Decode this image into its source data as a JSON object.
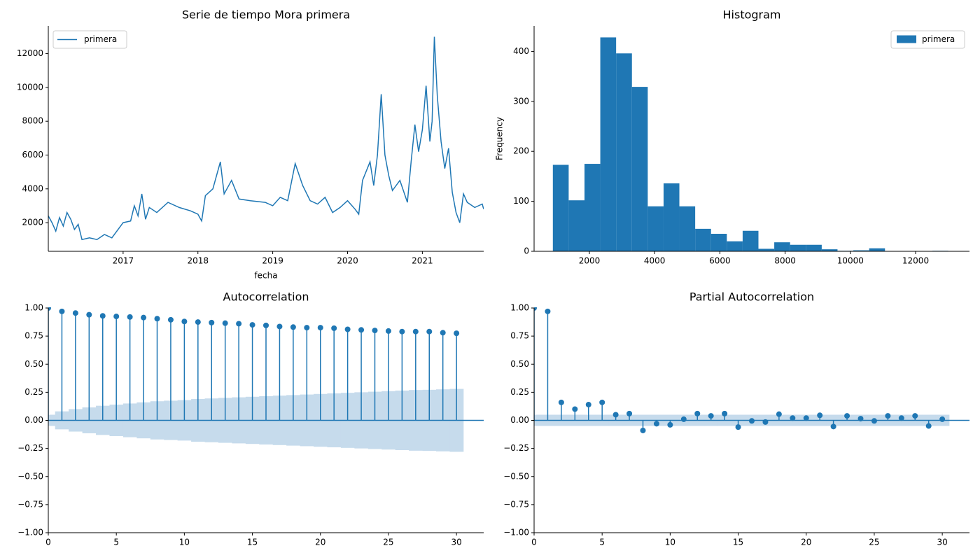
{
  "chart_data": [
    {
      "type": "line",
      "title": "Serie de tiempo Mora primera",
      "xlabel": "fecha",
      "legend": "upper left",
      "x": [
        2016.0,
        2016.05,
        2016.1,
        2016.15,
        2016.2,
        2016.25,
        2016.3,
        2016.35,
        2016.4,
        2016.45,
        2016.55,
        2016.65,
        2016.75,
        2016.85,
        2016.95,
        2017.0,
        2017.1,
        2017.15,
        2017.2,
        2017.25,
        2017.3,
        2017.35,
        2017.45,
        2017.6,
        2017.75,
        2017.9,
        2018.0,
        2018.05,
        2018.1,
        2018.2,
        2018.3,
        2018.35,
        2018.45,
        2018.55,
        2018.7,
        2018.9,
        2019.0,
        2019.1,
        2019.2,
        2019.3,
        2019.4,
        2019.5,
        2019.6,
        2019.7,
        2019.8,
        2019.9,
        2020.0,
        2020.1,
        2020.15,
        2020.2,
        2020.3,
        2020.35,
        2020.4,
        2020.45,
        2020.5,
        2020.55,
        2020.6,
        2020.7,
        2020.8,
        2020.85,
        2020.9,
        2020.95,
        2021.0,
        2021.05,
        2021.1,
        2021.13,
        2021.16,
        2021.2,
        2021.25,
        2021.3,
        2021.35,
        2021.4,
        2021.45,
        2021.5,
        2021.55,
        2021.6,
        2021.7,
        2021.8,
        2021.82
      ],
      "series": [
        {
          "name": "primera",
          "color": "#1f77b4",
          "values": [
            2400,
            2000,
            1500,
            2300,
            1800,
            2600,
            2200,
            1600,
            1900,
            1000,
            1100,
            1000,
            1300,
            1100,
            1700,
            2000,
            2100,
            3000,
            2400,
            3700,
            2200,
            2900,
            2600,
            3200,
            2900,
            2700,
            2500,
            2100,
            3600,
            4000,
            5600,
            3700,
            4500,
            3400,
            3300,
            3200,
            3000,
            3500,
            3300,
            5500,
            4200,
            3300,
            3100,
            3500,
            2600,
            2900,
            3300,
            2800,
            2500,
            4500,
            5600,
            4200,
            6000,
            9600,
            6000,
            4800,
            3900,
            4500,
            3200,
            5600,
            7800,
            6200,
            7500,
            10100,
            6800,
            8000,
            13000,
            9500,
            6800,
            5200,
            6400,
            3800,
            2600,
            2000,
            3700,
            3200,
            2900,
            3100,
            2800
          ]
        }
      ],
      "xlim": [
        2016.0,
        2021.82
      ],
      "xticks": [
        2017,
        2018,
        2019,
        2020,
        2021
      ],
      "ylim": [
        306,
        13640
      ],
      "yticks": [
        2000,
        4000,
        6000,
        8000,
        10000,
        12000
      ]
    },
    {
      "type": "histogram",
      "title": "Histogram",
      "ylabel": "Frequency",
      "legend": "upper right",
      "bins": [
        880,
        1365,
        1850,
        2334,
        2819,
        3304,
        3789,
        4274,
        4758,
        5243,
        5728,
        6213,
        6698,
        7182,
        7667,
        8152,
        8637,
        9122,
        9606,
        10091,
        10576,
        11061,
        11546,
        12030,
        12515,
        13000
      ],
      "series": [
        {
          "name": "primera",
          "color": "#1f77b4",
          "values": [
            173,
            102,
            175,
            428,
            396,
            329,
            90,
            136,
            90,
            45,
            35,
            20,
            41,
            5,
            18,
            13,
            13,
            4,
            1,
            2,
            6,
            0,
            0,
            0,
            1
          ]
        }
      ],
      "xlim": [
        305,
        13652
      ],
      "xticks": [
        2000,
        4000,
        6000,
        8000,
        10000,
        12000
      ],
      "ylim": [
        0,
        451
      ],
      "yticks": [
        0,
        100,
        200,
        300,
        400
      ]
    },
    {
      "type": "stem",
      "title": "Autocorrelation",
      "color": "#1f77b4",
      "band_color": "#c6dbec",
      "x": [
        0,
        1,
        2,
        3,
        4,
        5,
        6,
        7,
        8,
        9,
        10,
        11,
        12,
        13,
        14,
        15,
        16,
        17,
        18,
        19,
        20,
        21,
        22,
        23,
        24,
        25,
        26,
        27,
        28,
        29,
        30
      ],
      "values": [
        1.0,
        0.97,
        0.955,
        0.94,
        0.93,
        0.925,
        0.92,
        0.915,
        0.905,
        0.895,
        0.88,
        0.875,
        0.87,
        0.865,
        0.86,
        0.85,
        0.845,
        0.835,
        0.83,
        0.825,
        0.825,
        0.82,
        0.81,
        0.805,
        0.8,
        0.795,
        0.79,
        0.79,
        0.79,
        0.78,
        0.775
      ],
      "confint": [
        0.05,
        0.08,
        0.1,
        0.115,
        0.13,
        0.14,
        0.15,
        0.16,
        0.17,
        0.175,
        0.18,
        0.19,
        0.195,
        0.2,
        0.205,
        0.21,
        0.215,
        0.22,
        0.225,
        0.23,
        0.235,
        0.24,
        0.245,
        0.25,
        0.255,
        0.26,
        0.265,
        0.27,
        0.272,
        0.276,
        0.28
      ],
      "xlim": [
        0,
        32
      ],
      "xticks": [
        0,
        5,
        10,
        15,
        20,
        25,
        30
      ],
      "ylim": [
        -1,
        1
      ],
      "yticks": [
        {
          "value": -1,
          "label": "−1.00"
        },
        {
          "value": -0.75,
          "label": "−0.75"
        },
        {
          "value": -0.5,
          "label": "−0.50"
        },
        {
          "value": -0.25,
          "label": "−0.25"
        },
        {
          "value": 0,
          "label": "0.00"
        },
        {
          "value": 0.25,
          "label": "0.25"
        },
        {
          "value": 0.5,
          "label": "0.50"
        },
        {
          "value": 0.75,
          "label": "0.75"
        },
        {
          "value": 1,
          "label": "1.00"
        }
      ]
    },
    {
      "type": "stem",
      "title": "Partial Autocorrelation",
      "color": "#1f77b4",
      "band_color": "#c6dbec",
      "x": [
        0,
        1,
        2,
        3,
        4,
        5,
        6,
        7,
        8,
        9,
        10,
        11,
        12,
        13,
        14,
        15,
        16,
        17,
        18,
        19,
        20,
        21,
        22,
        23,
        24,
        25,
        26,
        27,
        28,
        29,
        30
      ],
      "values": [
        1.0,
        0.97,
        0.16,
        0.1,
        0.14,
        0.16,
        0.05,
        0.06,
        -0.09,
        -0.03,
        -0.04,
        0.01,
        0.06,
        0.04,
        0.06,
        -0.06,
        -0.005,
        -0.015,
        0.055,
        0.02,
        0.02,
        0.045,
        -0.055,
        0.04,
        0.015,
        -0.005,
        0.04,
        0.02,
        0.04,
        -0.05,
        0.01
      ],
      "confint": [
        0.05,
        0.05,
        0.05,
        0.05,
        0.05,
        0.05,
        0.05,
        0.05,
        0.05,
        0.05,
        0.05,
        0.05,
        0.05,
        0.05,
        0.05,
        0.05,
        0.05,
        0.05,
        0.05,
        0.05,
        0.05,
        0.05,
        0.05,
        0.05,
        0.05,
        0.05,
        0.05,
        0.05,
        0.05,
        0.05,
        0.05
      ],
      "xlim": [
        0,
        32
      ],
      "xticks": [
        0,
        5,
        10,
        15,
        20,
        25,
        30
      ],
      "ylim": [
        -1,
        1
      ],
      "yticks": [
        {
          "value": -1,
          "label": "−1.00"
        },
        {
          "value": -0.75,
          "label": "−0.75"
        },
        {
          "value": -0.5,
          "label": "−0.50"
        },
        {
          "value": -0.25,
          "label": "−0.25"
        },
        {
          "value": 0,
          "label": "0.00"
        },
        {
          "value": 0.25,
          "label": "0.25"
        },
        {
          "value": 0.5,
          "label": "0.50"
        },
        {
          "value": 0.75,
          "label": "0.75"
        },
        {
          "value": 1,
          "label": "1.00"
        }
      ]
    }
  ]
}
